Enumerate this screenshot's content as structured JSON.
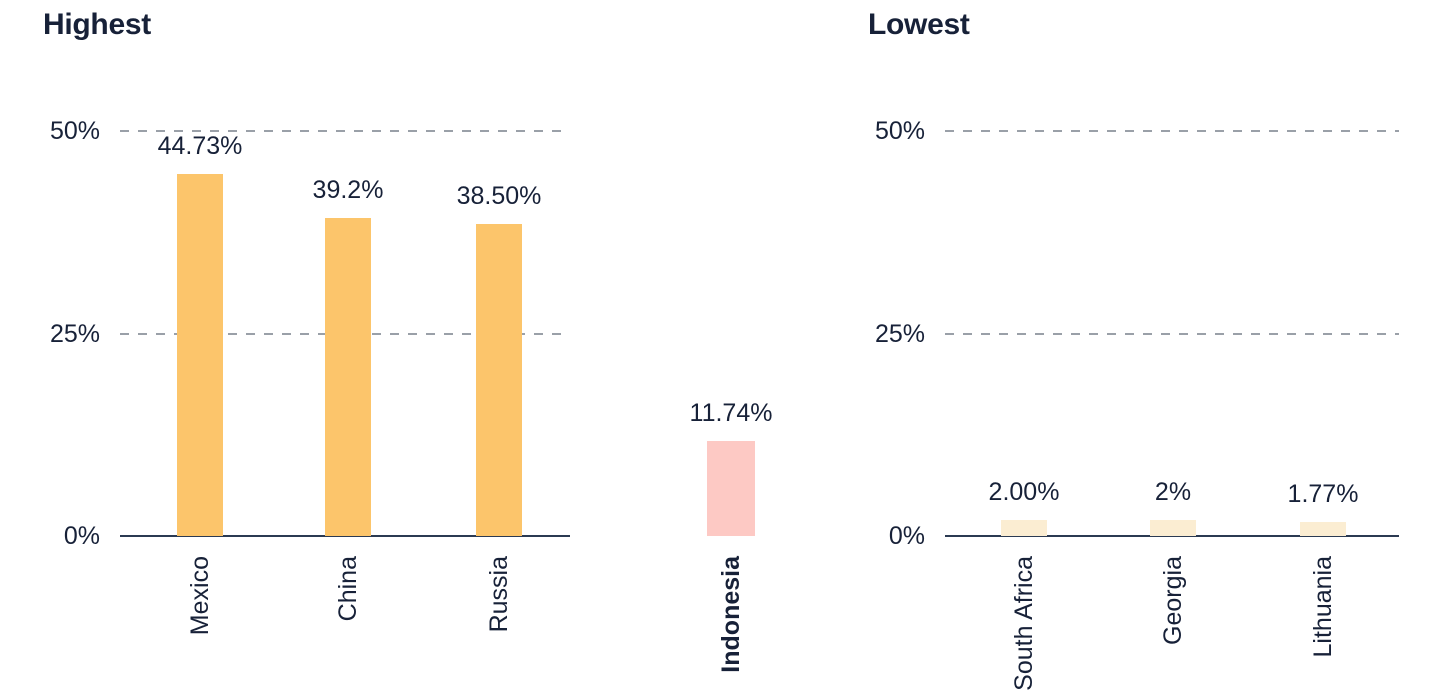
{
  "page": {
    "background": "#ffffff"
  },
  "colors": {
    "text": "#172138",
    "axis_line": "#2b3a52",
    "gridline": "#9aa0a8",
    "highest_bar": "#fcc56b",
    "indonesia_bar": "#fdc9c4",
    "lowest_bar": "#fbedd2"
  },
  "chart_data": [
    {
      "type": "bar",
      "title": "Highest",
      "categories": [
        "Mexico",
        "China",
        "Russia"
      ],
      "values": [
        44.73,
        39.2,
        38.5
      ],
      "value_labels": [
        "44.73%",
        "39.2%",
        "38.50%"
      ],
      "bar_color": "#fcc56b",
      "yticks": [
        {
          "label": "50%",
          "value": 50
        },
        {
          "label": "25%",
          "value": 25
        },
        {
          "label": "0%",
          "value": 0
        }
      ],
      "ylim": [
        0,
        50
      ],
      "gridlines": "dashed-horizontal",
      "legend": "none",
      "bold_categories": false
    },
    {
      "type": "bar",
      "title": "",
      "categories": [
        "Indonesia"
      ],
      "values": [
        11.74
      ],
      "value_labels": [
        "11.74%"
      ],
      "bar_color": "#fdc9c4",
      "yticks": [],
      "ylim": [
        0,
        50
      ],
      "gridlines": "none",
      "legend": "none",
      "bold_categories": true
    },
    {
      "type": "bar",
      "title": "Lowest",
      "categories": [
        "South Africa",
        "Georgia",
        "Lithuania"
      ],
      "values": [
        2.0,
        2.0,
        1.77
      ],
      "value_labels": [
        "2.00%",
        "2%",
        "1.77%"
      ],
      "bar_color": "#fbedd2",
      "yticks": [
        {
          "label": "50%",
          "value": 50
        },
        {
          "label": "25%",
          "value": 25
        },
        {
          "label": "0%",
          "value": 0
        }
      ],
      "ylim": [
        0,
        50
      ],
      "gridlines": "dashed-horizontal",
      "legend": "none",
      "bold_categories": false
    }
  ]
}
